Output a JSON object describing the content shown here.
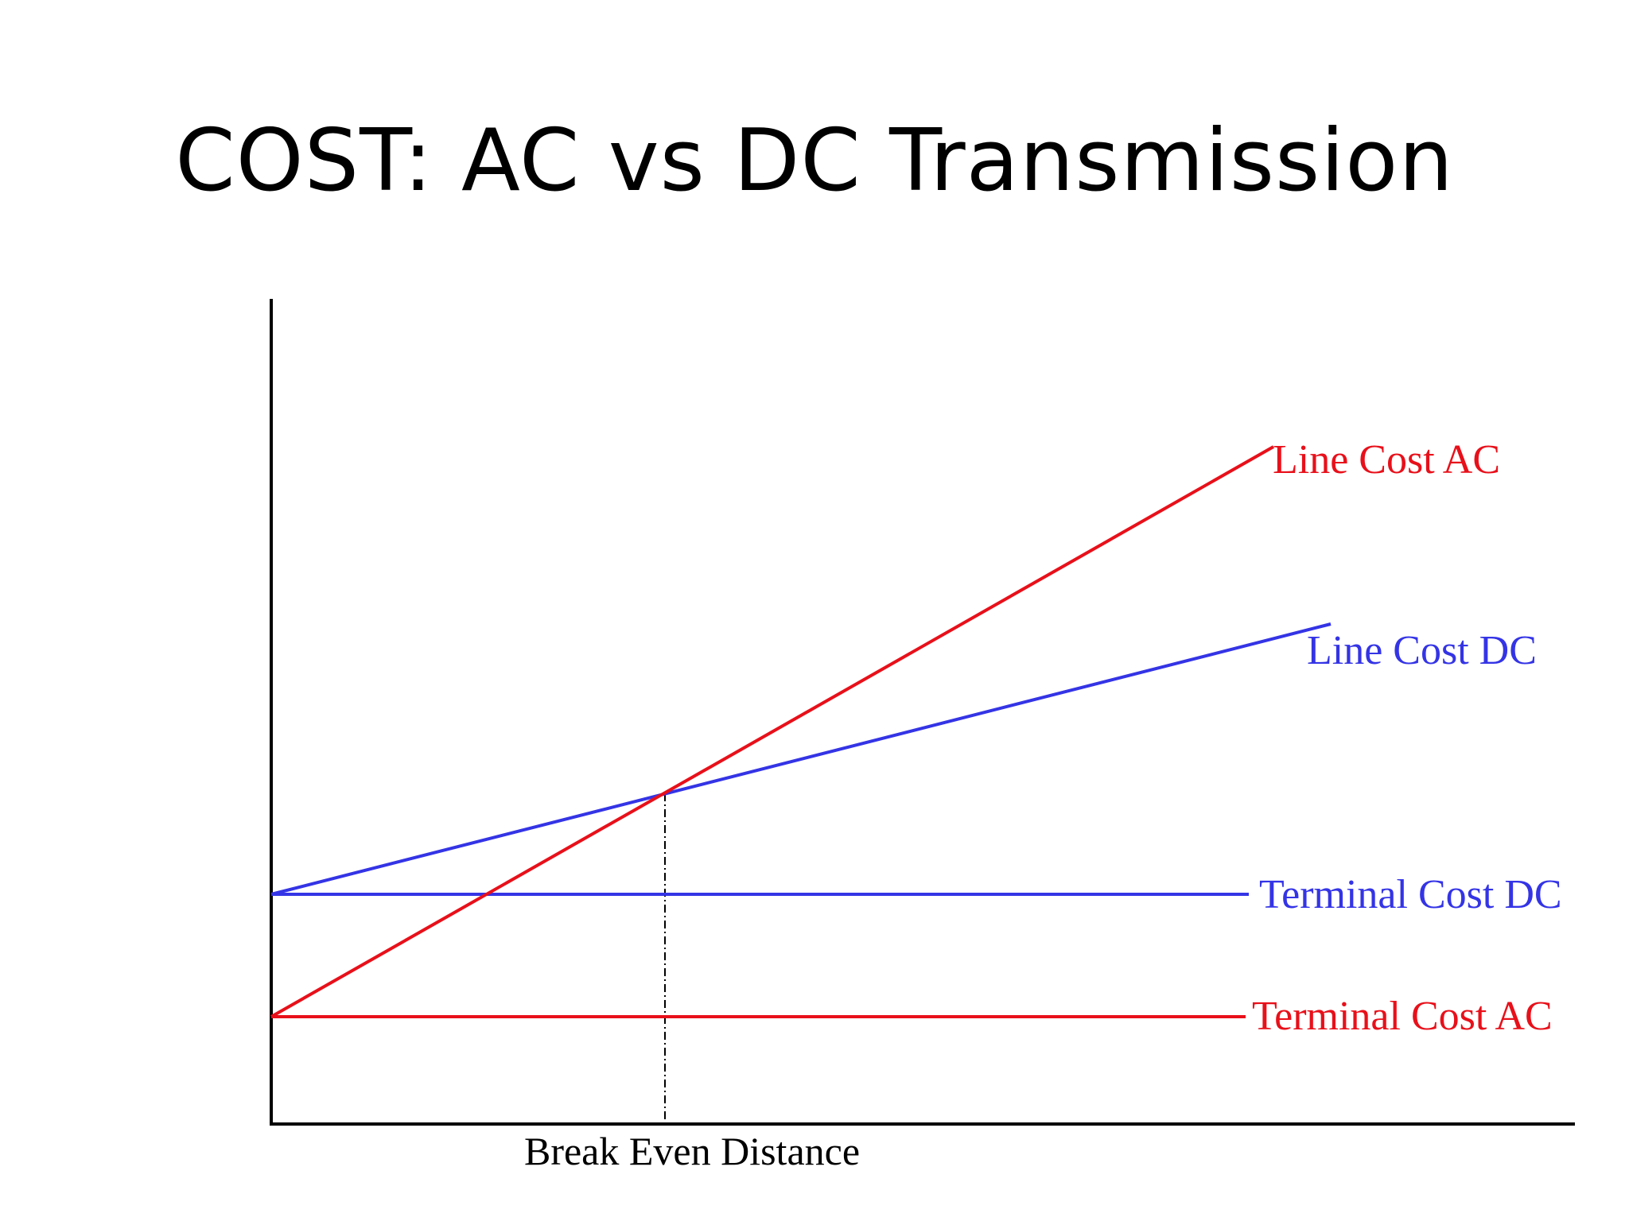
{
  "title": "COST: AC vs DC Transmission",
  "colors": {
    "ac": "#e8101a",
    "dc": "#3434e6",
    "axis": "#000000"
  },
  "lines": {
    "line_cost_ac": "Line Cost AC",
    "line_cost_dc": "Line Cost DC",
    "terminal_cost_dc": "Terminal Cost DC",
    "terminal_cost_ac": "Terminal Cost AC"
  },
  "xlabel": "Break Even Distance"
}
